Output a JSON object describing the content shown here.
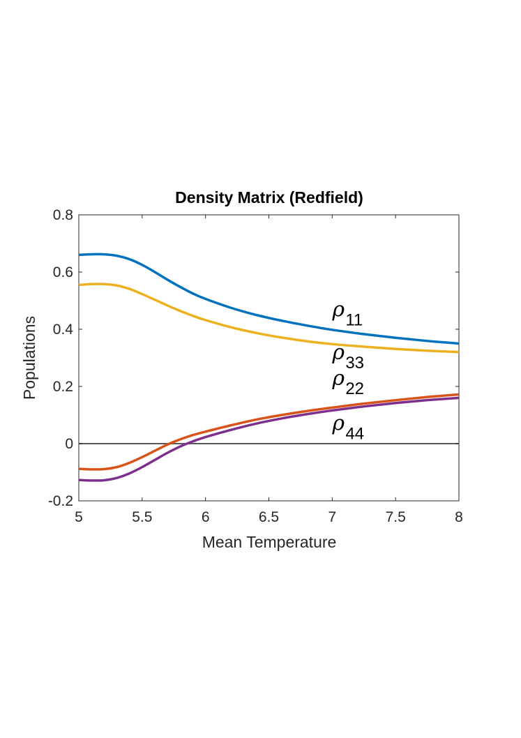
{
  "chart_data": {
    "type": "line",
    "title": "Density Matrix (Redfield)",
    "xlabel": "Mean Temperature",
    "ylabel": "Populations",
    "xlim": [
      5,
      8
    ],
    "ylim": [
      -0.2,
      0.8
    ],
    "xticks": [
      5,
      5.5,
      6,
      6.5,
      7,
      7.5,
      8
    ],
    "xtick_labels": [
      "5",
      "5.5",
      "6",
      "6.5",
      "7",
      "7.5",
      "8"
    ],
    "yticks": [
      -0.2,
      0,
      0.2,
      0.4,
      0.6,
      0.8
    ],
    "ytick_labels": [
      "-0.2",
      "0",
      "0.2",
      "0.4",
      "0.6",
      "0.8"
    ],
    "grid": false,
    "x": [
      5.0,
      5.1,
      5.2,
      5.3,
      5.4,
      5.5,
      5.6,
      5.7,
      5.8,
      5.9,
      6.0,
      6.2,
      6.4,
      6.6,
      6.8,
      7.0,
      7.25,
      7.5,
      7.75,
      8.0
    ],
    "series": [
      {
        "name": "rho_11",
        "color": "#0072bd",
        "values": [
          0.66,
          0.662,
          0.662,
          0.657,
          0.645,
          0.625,
          0.6,
          0.573,
          0.548,
          0.525,
          0.506,
          0.475,
          0.45,
          0.43,
          0.413,
          0.398,
          0.383,
          0.37,
          0.359,
          0.35
        ]
      },
      {
        "name": "rho_33",
        "color": "#edb120",
        "values": [
          0.555,
          0.558,
          0.558,
          0.553,
          0.541,
          0.523,
          0.503,
          0.483,
          0.464,
          0.447,
          0.432,
          0.407,
          0.387,
          0.371,
          0.358,
          0.348,
          0.339,
          0.331,
          0.325,
          0.32
        ]
      },
      {
        "name": "rho_22",
        "color": "#d95319",
        "values": [
          -0.088,
          -0.09,
          -0.089,
          -0.082,
          -0.067,
          -0.047,
          -0.025,
          -0.003,
          0.015,
          0.03,
          0.042,
          0.064,
          0.084,
          0.1,
          0.114,
          0.126,
          0.14,
          0.152,
          0.163,
          0.172
        ]
      },
      {
        "name": "rho_44",
        "color": "#7e2f8e",
        "values": [
          -0.127,
          -0.129,
          -0.128,
          -0.12,
          -0.104,
          -0.082,
          -0.057,
          -0.032,
          -0.01,
          0.008,
          0.023,
          0.048,
          0.07,
          0.088,
          0.103,
          0.116,
          0.13,
          0.142,
          0.152,
          0.16
        ]
      }
    ],
    "reference_line": {
      "y": 0,
      "color": "#595959"
    },
    "annotations": [
      {
        "symbol": "ρ",
        "subscript": "11",
        "x": 7.0,
        "y": 0.445
      },
      {
        "symbol": "ρ",
        "subscript": "33",
        "x": 7.0,
        "y": 0.295
      },
      {
        "symbol": "ρ",
        "subscript": "22",
        "x": 7.0,
        "y": 0.205
      },
      {
        "symbol": "ρ",
        "subscript": "44",
        "x": 7.0,
        "y": 0.048
      }
    ]
  }
}
